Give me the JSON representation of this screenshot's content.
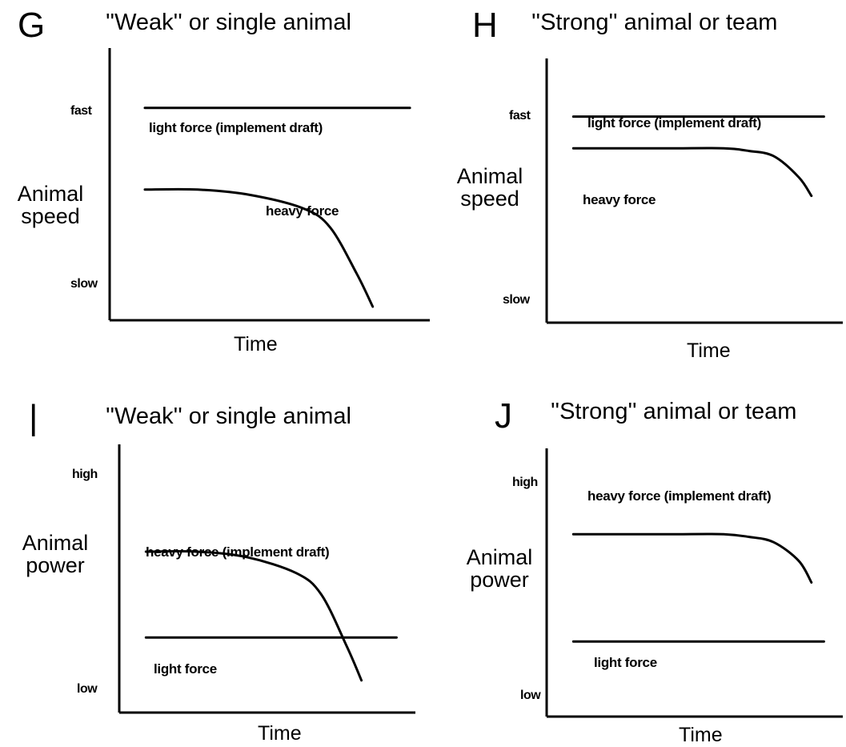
{
  "chart_data": [
    {
      "type": "line",
      "panel": "G",
      "title": "\"Weak\" or single animal",
      "ylabel": "Animal speed",
      "xlabel": "Time",
      "y_tick_labels": [
        "fast",
        "slow"
      ],
      "x": [
        0,
        0.2,
        0.4,
        0.6,
        0.7,
        0.8,
        0.86
      ],
      "series": [
        {
          "label": "light force (implement draft)",
          "values": [
            0.78,
            0.78,
            0.78,
            0.78,
            0.78,
            0.78,
            0.78,
            0.78
          ],
          "x": [
            0,
            0.2,
            0.4,
            0.6,
            0.7,
            0.8,
            0.9,
            1.0
          ]
        },
        {
          "label": "heavy force",
          "values": [
            0.48,
            0.48,
            0.46,
            0.41,
            0.34,
            0.17,
            0.05
          ]
        }
      ],
      "grid": false
    },
    {
      "type": "line",
      "panel": "H",
      "title": "\"Strong\" animal or team",
      "ylabel": "Animal speed",
      "xlabel": "Time",
      "y_tick_labels": [
        "fast",
        "slow"
      ],
      "x": [
        0,
        0.2,
        0.4,
        0.6,
        0.7,
        0.8,
        0.9,
        0.95
      ],
      "series": [
        {
          "label": "light force (implement draft)",
          "values": [
            0.78,
            0.78,
            0.78,
            0.78,
            0.78,
            0.78,
            0.78,
            0.78
          ],
          "x": [
            0,
            0.2,
            0.4,
            0.6,
            0.7,
            0.8,
            0.9,
            1.0
          ]
        },
        {
          "label": "heavy force",
          "values": [
            0.66,
            0.66,
            0.66,
            0.66,
            0.65,
            0.63,
            0.55,
            0.48
          ]
        }
      ],
      "grid": false
    },
    {
      "type": "line",
      "panel": "I",
      "title": "\"Weak\" or single animal",
      "ylabel": "Animal power",
      "xlabel": "Time",
      "y_tick_labels": [
        "high",
        "low"
      ],
      "x": [
        0,
        0.2,
        0.4,
        0.6,
        0.7,
        0.8,
        0.86
      ],
      "series": [
        {
          "label": "heavy force (implement draft)",
          "values": [
            0.6,
            0.6,
            0.58,
            0.52,
            0.44,
            0.25,
            0.12
          ]
        },
        {
          "label": "light force",
          "values": [
            0.28,
            0.28,
            0.28,
            0.28,
            0.28,
            0.28,
            0.28,
            0.28
          ],
          "x": [
            0,
            0.2,
            0.4,
            0.6,
            0.7,
            0.8,
            0.9,
            1.0
          ]
        }
      ],
      "grid": false
    },
    {
      "type": "line",
      "panel": "J",
      "title": "\"Strong\" animal or team",
      "ylabel": "Animal power",
      "xlabel": "Time",
      "y_tick_labels": [
        "high",
        "low"
      ],
      "x": [
        0,
        0.2,
        0.4,
        0.6,
        0.7,
        0.8,
        0.9,
        0.95
      ],
      "series": [
        {
          "label": "heavy force (implement draft)",
          "values": [
            0.68,
            0.68,
            0.68,
            0.68,
            0.67,
            0.65,
            0.58,
            0.5
          ]
        },
        {
          "label": "light force",
          "values": [
            0.28,
            0.28,
            0.28,
            0.28,
            0.28,
            0.28,
            0.28,
            0.28
          ],
          "x": [
            0,
            0.2,
            0.4,
            0.6,
            0.7,
            0.8,
            0.9,
            1.0
          ]
        }
      ],
      "grid": false
    }
  ],
  "panels": [
    {
      "letter": "G",
      "title": "''Weak'' or  single animal",
      "ylabel_line1": "Animal",
      "ylabel_line2": "speed",
      "tick_top": "fast",
      "tick_bottom": "slow",
      "xlabel": "Time",
      "label_a": "light force (implement draft)",
      "label_b": "heavy force"
    },
    {
      "letter": "H",
      "title": "''Strong'' animal or team",
      "ylabel_line1": "Animal",
      "ylabel_line2": "speed",
      "tick_top": "fast",
      "tick_bottom": "slow",
      "xlabel": "Time",
      "label_a": "light force (implement draft)",
      "label_b": "heavy force"
    },
    {
      "letter": "|",
      "title": "''Weak'' or single animal",
      "ylabel_line1": "Animal",
      "ylabel_line2": "power",
      "tick_top": "high",
      "tick_bottom": "low",
      "xlabel": "Time",
      "label_a": "heavy force (implement draft)",
      "label_b": "light force"
    },
    {
      "letter": "J",
      "title": "''Strong'' animal or team",
      "ylabel_line1": "Animal",
      "ylabel_line2": "power",
      "tick_top": "high",
      "tick_bottom": "low",
      "xlabel": "Time",
      "label_a": "heavy force (implement draft)",
      "label_b": "light force"
    }
  ]
}
